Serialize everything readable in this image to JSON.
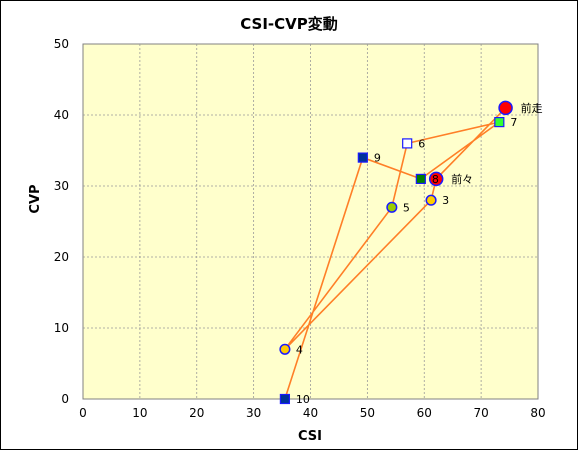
{
  "chart_data": {
    "type": "scatter",
    "title": "CSI-CVP変動",
    "xlabel": "CSI",
    "ylabel": "CVP",
    "xlim": [
      0,
      80
    ],
    "ylim": [
      0,
      50
    ],
    "xticks": [
      "0",
      "10",
      "20",
      "30",
      "40",
      "50",
      "60",
      "70",
      "80"
    ],
    "yticks": [
      "0",
      "10",
      "20",
      "30",
      "40",
      "50"
    ],
    "grid": "on",
    "plot_background": "#ffffcc",
    "line_color": "#ff7f27",
    "points": [
      {
        "label": "前走",
        "x": 74.3,
        "y": 41,
        "marker": "circle",
        "fill": "#ff0000"
      },
      {
        "label": "前々",
        "x": 62.1,
        "y": 31,
        "marker": "circle",
        "fill": "#ff0000"
      },
      {
        "label": "3",
        "x": 61.2,
        "y": 28,
        "marker": "circle",
        "fill": "#ffcc00"
      },
      {
        "label": "4",
        "x": 35.5,
        "y": 7,
        "marker": "circle",
        "fill": "#ffcc00"
      },
      {
        "label": "5",
        "x": 54.3,
        "y": 27,
        "marker": "circle",
        "fill": "#99cc00"
      },
      {
        "label": "6",
        "x": 57.0,
        "y": 36,
        "marker": "square",
        "fill": "#ffffff"
      },
      {
        "label": "7",
        "x": 73.2,
        "y": 39,
        "marker": "square",
        "fill": "#33ff33"
      },
      {
        "label": "8",
        "x": 59.4,
        "y": 31,
        "marker": "square",
        "fill": "#008000"
      },
      {
        "label": "9",
        "x": 49.2,
        "y": 34,
        "marker": "square",
        "fill": "#003399"
      },
      {
        "label": "10",
        "x": 35.5,
        "y": 0,
        "marker": "square",
        "fill": "#003399"
      }
    ]
  }
}
